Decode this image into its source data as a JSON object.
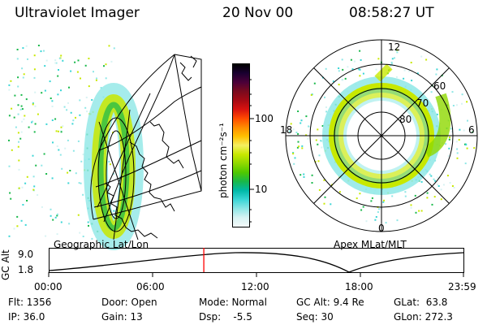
{
  "header": {
    "instrument": "Ultraviolet Imager",
    "date": "20 Nov 00",
    "time": "08:58:27 UT"
  },
  "left_panel": {
    "caption": "Geographic Lat/Lon"
  },
  "right_panel": {
    "caption": "Apex MLat/MLT",
    "mlt_labels": {
      "top": "12",
      "left": "18",
      "right": "6",
      "bottom": "0"
    },
    "lat_labels": [
      "60",
      "70",
      "80"
    ]
  },
  "colorbar": {
    "unit_label": "photon cm⁻²s⁻¹",
    "ticks": [
      "100",
      "10"
    ],
    "colors": [
      "#000000",
      "#1a0030",
      "#4b0038",
      "#7a0a1e",
      "#a50a14",
      "#d8120f",
      "#ff4a00",
      "#ff8c00",
      "#ffc000",
      "#f5ef60",
      "#c8e800",
      "#8fd800",
      "#4fc800",
      "#18b84a",
      "#00b9a8",
      "#3ad6d6",
      "#8ee7e6",
      "#d8f3f3",
      "#f4fbfb"
    ]
  },
  "altitude_plot": {
    "axis_title": "GC Alt",
    "y_ticks": [
      "9.0",
      "1.8"
    ],
    "x_ticks": [
      "00:00",
      "06:00",
      "12:00",
      "18:00",
      "23:59"
    ],
    "marker_color": "#ff0000",
    "marker_time": "08:58:27"
  },
  "info": {
    "flt": "Flt: 1356",
    "ip": "IP: 36.0",
    "door": "Door: Open",
    "gain": "Gain: 13",
    "mode": "Mode: Normal",
    "dsp": "Dsp:    -5.5",
    "gc_alt": "GC Alt: 9.4 Re",
    "seq": "Seq: 30",
    "glat": "GLat:  63.8",
    "glon": "GLon: 272.3"
  }
}
